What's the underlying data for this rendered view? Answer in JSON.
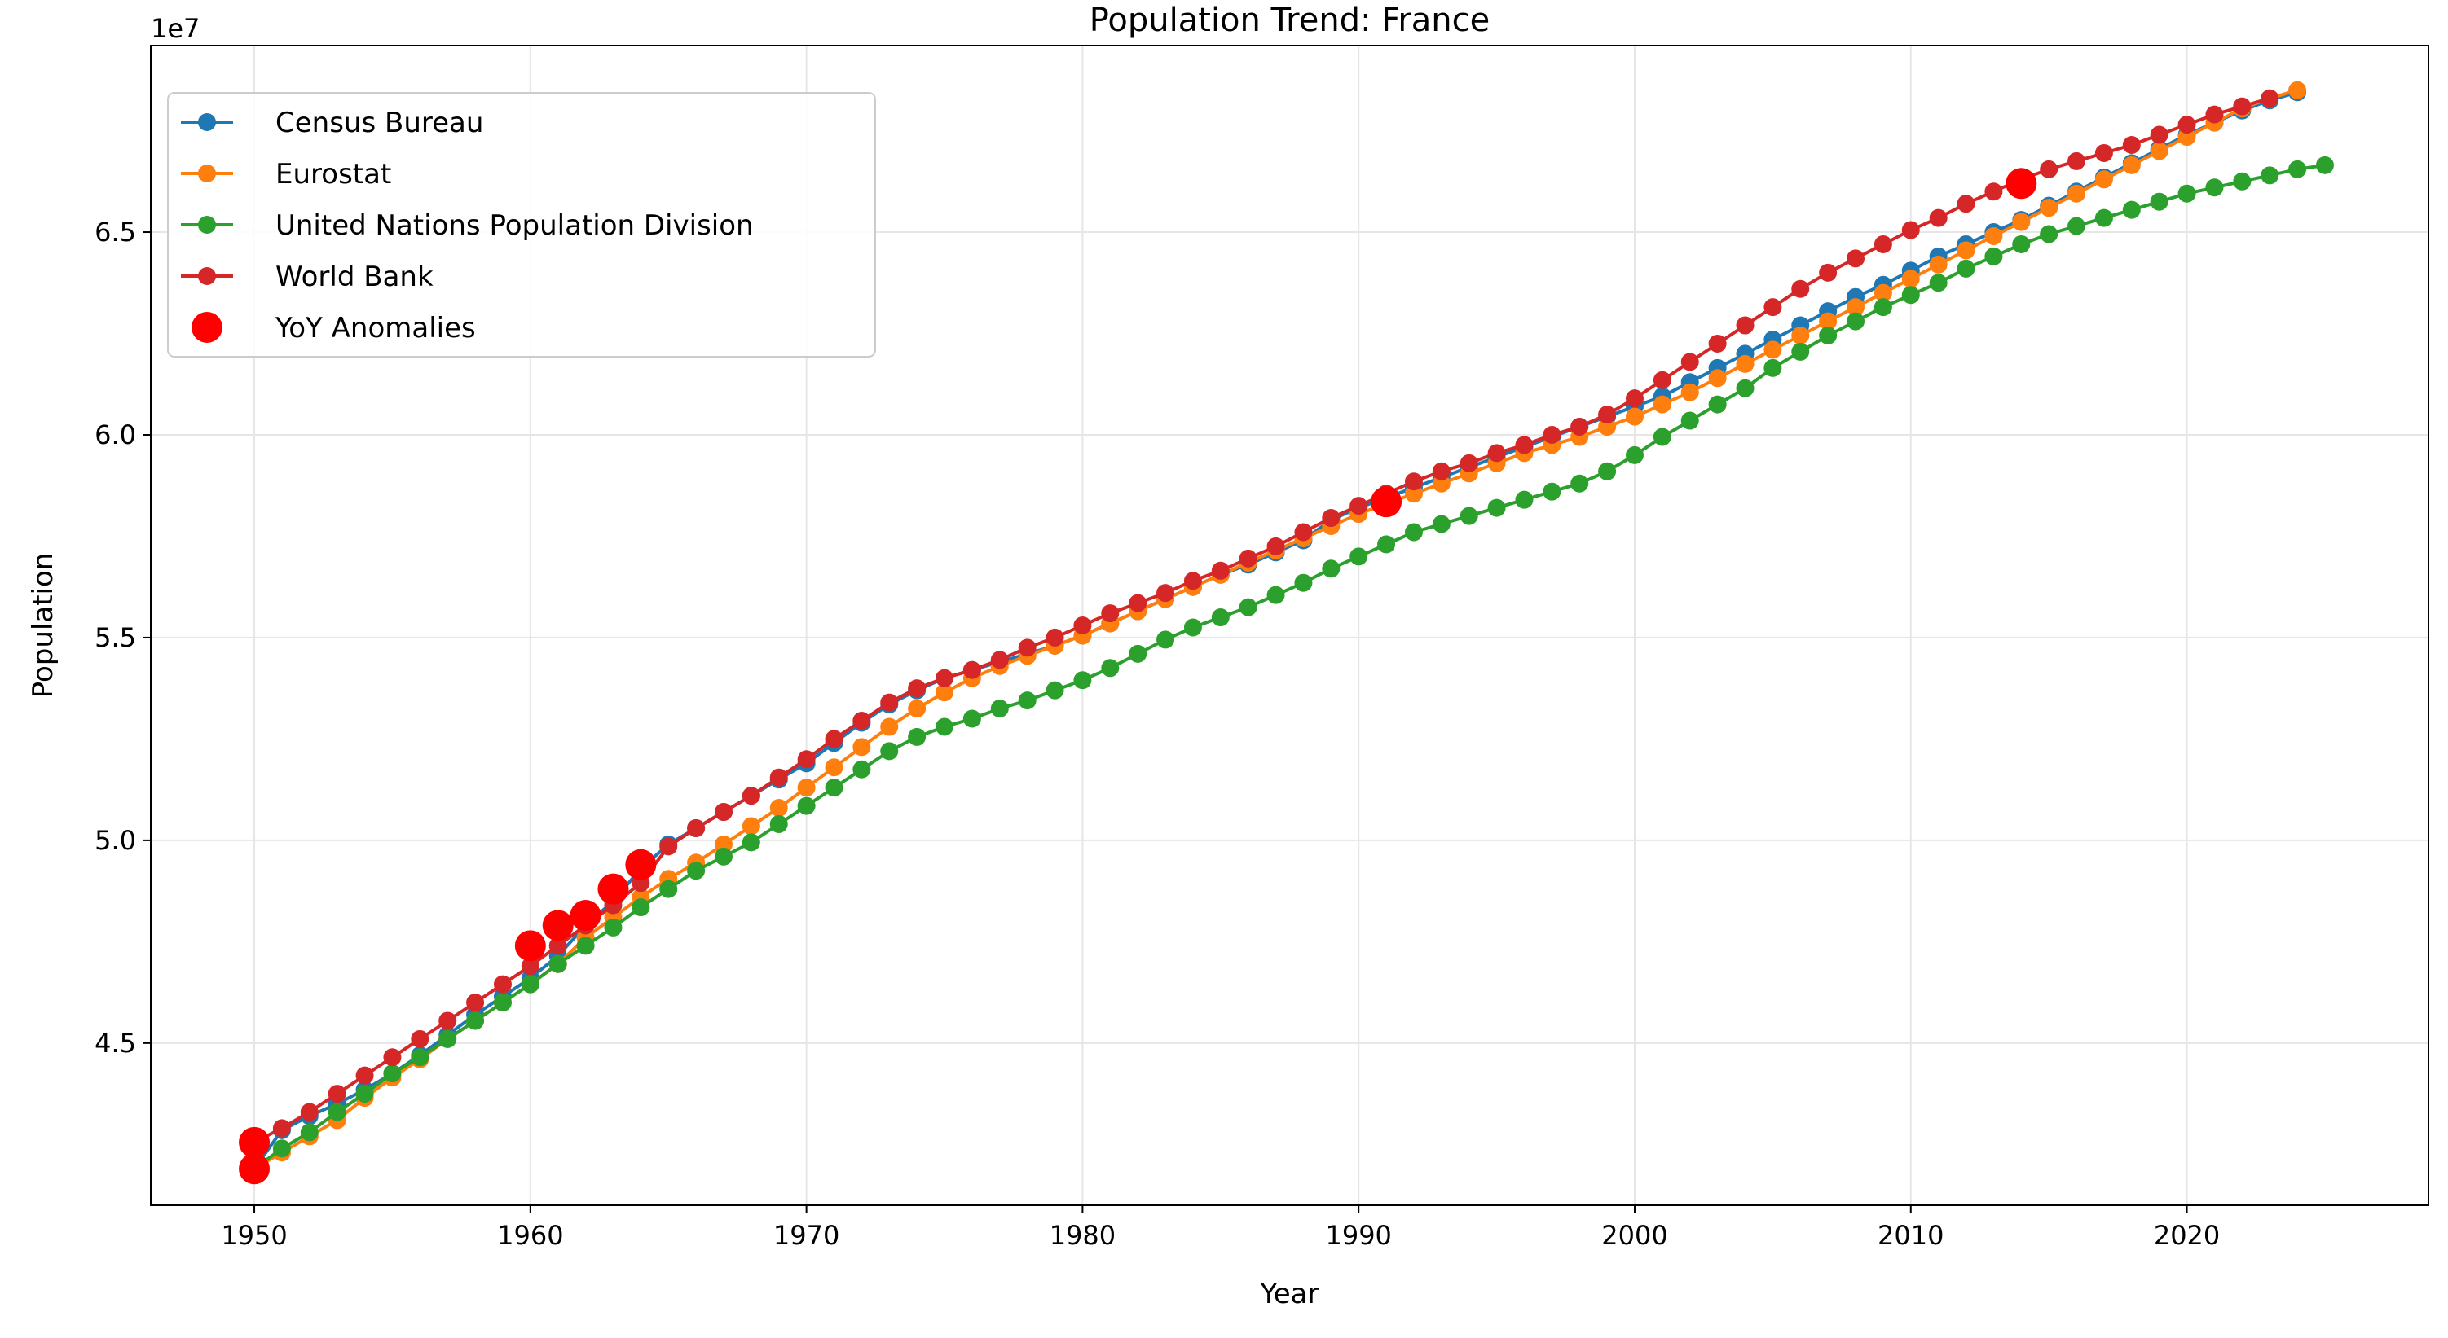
{
  "colors": {
    "census": "#1f77b4",
    "eurostat": "#ff7f0e",
    "un": "#2ca02c",
    "worldbank": "#d62728",
    "anomaly": "#ff0000",
    "grid": "#e6e6e6",
    "axis": "#000000"
  },
  "chart_data": {
    "type": "line",
    "title": "Population Trend: France",
    "xlabel": "Year",
    "ylabel": "Population",
    "y_offset_text": "1e7",
    "xlim": [
      1946.25,
      2028.75
    ],
    "ylim": [
      41000000.0,
      69600000.0
    ],
    "x_ticks": [
      1950,
      1960,
      1970,
      1980,
      1990,
      2000,
      2010,
      2020
    ],
    "x_tick_labels": [
      "1950",
      "1960",
      "1970",
      "1980",
      "1990",
      "2000",
      "2010",
      "2020"
    ],
    "y_ticks": [
      45000000.0,
      50000000.0,
      55000000.0,
      60000000.0,
      65000000.0
    ],
    "y_tick_labels": [
      "4.5",
      "5.0",
      "5.5",
      "6.0",
      "6.5"
    ],
    "grid": true,
    "legend_position": "upper-left",
    "series": [
      {
        "name": "Census Bureau",
        "color_key": "census",
        "x": [
          1950,
          1951,
          1952,
          1953,
          1954,
          1955,
          1956,
          1957,
          1958,
          1959,
          1960,
          1961,
          1962,
          1963,
          1964,
          1965,
          1966,
          1967,
          1968,
          1969,
          1970,
          1971,
          1972,
          1973,
          1974,
          1975,
          1976,
          1977,
          1978,
          1979,
          1980,
          1981,
          1982,
          1983,
          1984,
          1985,
          1986,
          1987,
          1988,
          1989,
          1990,
          1991,
          1992,
          1993,
          1994,
          1995,
          1996,
          1997,
          1998,
          1999,
          2000,
          2001,
          2002,
          2003,
          2004,
          2005,
          2006,
          2007,
          2008,
          2009,
          2010,
          2011,
          2012,
          2013,
          2014,
          2015,
          2016,
          2017,
          2018,
          2019,
          2020,
          2021,
          2022,
          2023,
          2024
        ],
        "y": [
          41900000,
          42850000,
          43200000,
          43500000,
          43850000,
          44250000,
          44700000,
          45200000,
          45700000,
          46150000,
          46600000,
          47150000,
          47900000,
          48500000,
          49300000,
          49900000,
          50300000,
          50700000,
          51100000,
          51500000,
          51900000,
          52400000,
          52900000,
          53350000,
          53700000,
          54000000,
          54200000,
          54400000,
          54600000,
          54800000,
          55050000,
          55350000,
          55650000,
          55950000,
          56250000,
          56550000,
          56800000,
          57100000,
          57400000,
          57900000,
          58200000,
          58450000,
          58700000,
          58950000,
          59200000,
          59450000,
          59700000,
          59950000,
          60200000,
          60450000,
          60700000,
          60950000,
          61300000,
          61650000,
          62000000,
          62350000,
          62700000,
          63050000,
          63400000,
          63700000,
          64050000,
          64400000,
          64700000,
          65000000,
          65300000,
          65650000,
          66000000,
          66350000,
          66700000,
          67050000,
          67400000,
          67700000,
          68000000,
          68250000,
          68450000
        ]
      },
      {
        "name": "Eurostat",
        "color_key": "eurostat",
        "x": [
          1950,
          1951,
          1952,
          1953,
          1954,
          1955,
          1956,
          1957,
          1958,
          1959,
          1960,
          1961,
          1962,
          1963,
          1964,
          1965,
          1966,
          1967,
          1968,
          1969,
          1970,
          1971,
          1972,
          1973,
          1974,
          1975,
          1976,
          1977,
          1978,
          1979,
          1980,
          1981,
          1982,
          1983,
          1984,
          1985,
          1986,
          1987,
          1988,
          1989,
          1990,
          1991,
          1992,
          1993,
          1994,
          1995,
          1996,
          1997,
          1998,
          1999,
          2000,
          2001,
          2002,
          2003,
          2004,
          2005,
          2006,
          2007,
          2008,
          2009,
          2010,
          2011,
          2012,
          2013,
          2014,
          2015,
          2016,
          2017,
          2018,
          2019,
          2020,
          2021,
          2022,
          2023,
          2024
        ],
        "y": [
          41900000,
          42300000,
          42700000,
          43100000,
          43650000,
          44150000,
          44600000,
          45100000,
          45550000,
          46000000,
          46450000,
          46950000,
          47600000,
          48100000,
          48600000,
          49050000,
          49450000,
          49900000,
          50350000,
          50800000,
          51300000,
          51800000,
          52300000,
          52800000,
          53250000,
          53650000,
          54000000,
          54300000,
          54550000,
          54800000,
          55050000,
          55350000,
          55650000,
          55950000,
          56250000,
          56550000,
          56850000,
          57150000,
          57450000,
          57750000,
          58050000,
          58300000,
          58550000,
          58800000,
          59050000,
          59300000,
          59550000,
          59750000,
          59950000,
          60200000,
          60450000,
          60750000,
          61050000,
          61400000,
          61750000,
          62100000,
          62450000,
          62800000,
          63150000,
          63500000,
          63850000,
          64200000,
          64550000,
          64900000,
          65250000,
          65600000,
          65950000,
          66300000,
          66650000,
          67000000,
          67350000,
          67700000,
          68050000,
          68300000,
          68500000
        ]
      },
      {
        "name": "United Nations Population Division",
        "color_key": "un",
        "x": [
          1950,
          1951,
          1952,
          1953,
          1954,
          1955,
          1956,
          1957,
          1958,
          1959,
          1960,
          1961,
          1962,
          1963,
          1964,
          1965,
          1966,
          1967,
          1968,
          1969,
          1970,
          1971,
          1972,
          1973,
          1974,
          1975,
          1976,
          1977,
          1978,
          1979,
          1980,
          1981,
          1982,
          1983,
          1984,
          1985,
          1986,
          1987,
          1988,
          1989,
          1990,
          1991,
          1992,
          1993,
          1994,
          1995,
          1996,
          1997,
          1998,
          1999,
          2000,
          2001,
          2002,
          2003,
          2004,
          2005,
          2006,
          2007,
          2008,
          2009,
          2010,
          2011,
          2012,
          2013,
          2014,
          2015,
          2016,
          2017,
          2018,
          2019,
          2020,
          2021,
          2022,
          2023,
          2024,
          2025
        ],
        "y": [
          41900000,
          42400000,
          42800000,
          43300000,
          43750000,
          44250000,
          44650000,
          45100000,
          45550000,
          46000000,
          46450000,
          46950000,
          47400000,
          47850000,
          48350000,
          48800000,
          49250000,
          49600000,
          49950000,
          50400000,
          50850000,
          51300000,
          51750000,
          52200000,
          52550000,
          52800000,
          53000000,
          53250000,
          53450000,
          53700000,
          53950000,
          54250000,
          54600000,
          54950000,
          55250000,
          55500000,
          55750000,
          56050000,
          56350000,
          56700000,
          57000000,
          57300000,
          57600000,
          57800000,
          58000000,
          58200000,
          58400000,
          58600000,
          58800000,
          59100000,
          59500000,
          59950000,
          60350000,
          60750000,
          61150000,
          61650000,
          62050000,
          62450000,
          62800000,
          63150000,
          63450000,
          63750000,
          64100000,
          64400000,
          64700000,
          64950000,
          65150000,
          65350000,
          65550000,
          65750000,
          65950000,
          66100000,
          66250000,
          66400000,
          66550000,
          66650000
        ]
      },
      {
        "name": "World Bank",
        "color_key": "worldbank",
        "x": [
          1950,
          1951,
          1952,
          1953,
          1954,
          1955,
          1956,
          1957,
          1958,
          1959,
          1960,
          1961,
          1962,
          1963,
          1964,
          1965,
          1966,
          1967,
          1968,
          1969,
          1970,
          1971,
          1972,
          1973,
          1974,
          1975,
          1976,
          1977,
          1978,
          1979,
          1980,
          1981,
          1982,
          1983,
          1984,
          1985,
          1986,
          1987,
          1988,
          1989,
          1990,
          1991,
          1992,
          1993,
          1994,
          1995,
          1996,
          1997,
          1998,
          1999,
          2000,
          2001,
          2002,
          2003,
          2004,
          2005,
          2006,
          2007,
          2008,
          2009,
          2010,
          2011,
          2012,
          2013,
          2014,
          2015,
          2016,
          2017,
          2018,
          2019,
          2020,
          2021,
          2022,
          2023
        ],
        "y": [
          42550000,
          42900000,
          43300000,
          43750000,
          44200000,
          44650000,
          45100000,
          45550000,
          46000000,
          46450000,
          46900000,
          47400000,
          47900000,
          48400000,
          48950000,
          49850000,
          50300000,
          50700000,
          51100000,
          51550000,
          52000000,
          52500000,
          52950000,
          53400000,
          53750000,
          54000000,
          54200000,
          54450000,
          54750000,
          55000000,
          55300000,
          55600000,
          55850000,
          56100000,
          56400000,
          56650000,
          56950000,
          57250000,
          57600000,
          57950000,
          58250000,
          58550000,
          58850000,
          59100000,
          59300000,
          59550000,
          59750000,
          60000000,
          60200000,
          60500000,
          60900000,
          61350000,
          61800000,
          62250000,
          62700000,
          63150000,
          63600000,
          64000000,
          64350000,
          64700000,
          65050000,
          65350000,
          65700000,
          66000000,
          66300000,
          66550000,
          66750000,
          66950000,
          67150000,
          67400000,
          67650000,
          67900000,
          68100000,
          68300000
        ]
      }
    ],
    "anomalies": {
      "name": "YoY Anomalies",
      "color_key": "anomaly",
      "x": [
        1950,
        1950,
        1960,
        1961,
        1962,
        1963,
        1964,
        1991,
        2014
      ],
      "y": [
        41900000,
        42550000,
        47400000,
        47900000,
        48150000,
        48800000,
        49400000,
        58350000,
        66200000
      ]
    }
  }
}
